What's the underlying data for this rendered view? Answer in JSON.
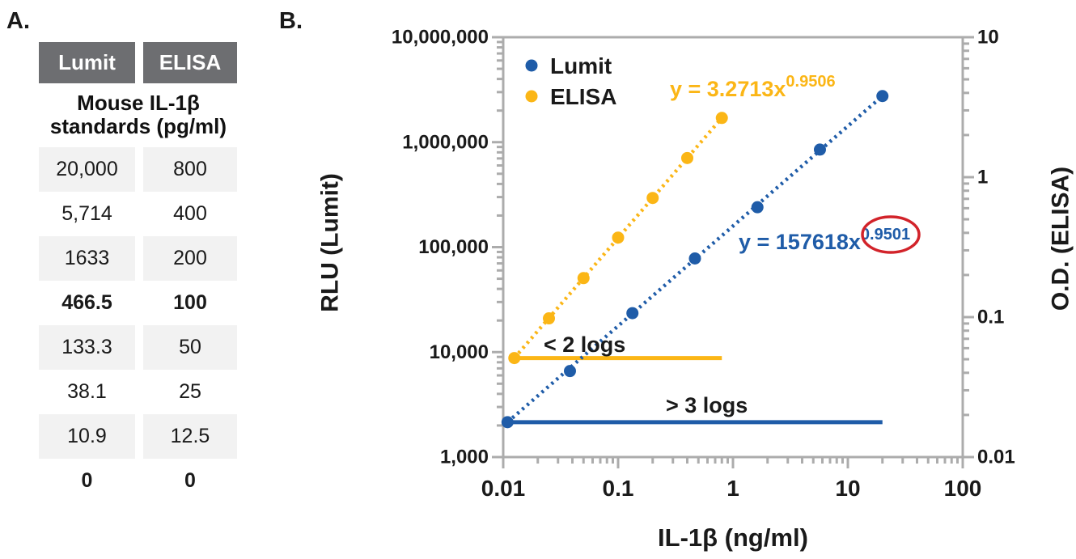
{
  "figure": {
    "panel_a_label": "A.",
    "panel_b_label": "B."
  },
  "colors": {
    "lumit_blue": "#1F5CA8",
    "elisa_yellow": "#FBB616",
    "red_circle": "#D2232A",
    "axis_gray": "#ACACAC",
    "table_header_gray": "#6D6E71",
    "row_shade": "#F2F2F2",
    "text": "#1A1A1A"
  },
  "table": {
    "headers": [
      "Lumit",
      "ELISA"
    ],
    "subtitle_line1": "Mouse IL-1β",
    "subtitle_line2": "standards (pg/ml)",
    "rows": [
      {
        "lumit": "20,000",
        "elisa": "800"
      },
      {
        "lumit": "5,714",
        "elisa": "400"
      },
      {
        "lumit": "1633",
        "elisa": "200"
      },
      {
        "lumit": "466.5",
        "elisa": "100"
      },
      {
        "lumit": "133.3",
        "elisa": "50"
      },
      {
        "lumit": "38.1",
        "elisa": "25"
      },
      {
        "lumit": "10.9",
        "elisa": "12.5"
      },
      {
        "lumit": "0",
        "elisa": "0"
      }
    ]
  },
  "chart_data": {
    "type": "scatter",
    "x_axis": {
      "label": "IL-1β (ng/ml)",
      "scale": "log",
      "range": [
        0.01,
        100
      ],
      "ticks": [
        "0.01",
        "0.1",
        "1",
        "10",
        "100"
      ]
    },
    "y_axis_left": {
      "label": "RLU (Lumit)",
      "scale": "log",
      "range": [
        1000,
        10000000
      ],
      "ticks": [
        "1,000",
        "10,000",
        "100,000",
        "1,000,000",
        "10,000,000"
      ]
    },
    "y_axis_right": {
      "label": "O.D. (ELISA)",
      "scale": "log",
      "range": [
        0.01,
        10
      ],
      "ticks": [
        "0.01",
        "0.1",
        "1",
        "10"
      ]
    },
    "grid": false,
    "legend": {
      "position": "top-left-inside",
      "entries": [
        "Lumit",
        "ELISA"
      ]
    },
    "series": [
      {
        "name": "Lumit",
        "axis": "left",
        "color": "#1F5CA8",
        "marker": "circle",
        "trendline_style": "dotted",
        "points": [
          {
            "x": 0.0109,
            "y": 2150
          },
          {
            "x": 0.0381,
            "y": 6600
          },
          {
            "x": 0.1333,
            "y": 23500
          },
          {
            "x": 0.4665,
            "y": 78000
          },
          {
            "x": 1.633,
            "y": 240000
          },
          {
            "x": 5.714,
            "y": 850000
          },
          {
            "x": 20,
            "y": 2750000
          }
        ]
      },
      {
        "name": "ELISA",
        "axis": "right",
        "color": "#FBB616",
        "marker": "circle",
        "trendline_style": "dotted",
        "points": [
          {
            "x": 0.0125,
            "y": 0.051
          },
          {
            "x": 0.025,
            "y": 0.098
          },
          {
            "x": 0.05,
            "y": 0.19
          },
          {
            "x": 0.1,
            "y": 0.37
          },
          {
            "x": 0.2,
            "y": 0.71
          },
          {
            "x": 0.4,
            "y": 1.37
          },
          {
            "x": 0.8,
            "y": 2.65
          }
        ]
      }
    ],
    "equation_labels": [
      {
        "series": "ELISA",
        "text": "y = 3.2713x",
        "exponent": "0.9506",
        "color": "#FBB616",
        "circled_exponent": false
      },
      {
        "series": "Lumit",
        "text": "y = 157618x",
        "exponent": "0.9501",
        "color": "#1F5CA8",
        "circled_exponent": true,
        "circle_color": "#D2232A"
      }
    ],
    "annotations": [
      {
        "text": "< 2 logs",
        "line_color": "#FBB616",
        "line_axis": "right",
        "line_y": 0.051,
        "x_from": 0.0125,
        "x_to": 0.8
      },
      {
        "text": "> 3 logs",
        "line_color": "#1F5CA8",
        "line_axis": "left",
        "line_y": 2150,
        "x_from": 0.0109,
        "x_to": 20
      }
    ]
  }
}
